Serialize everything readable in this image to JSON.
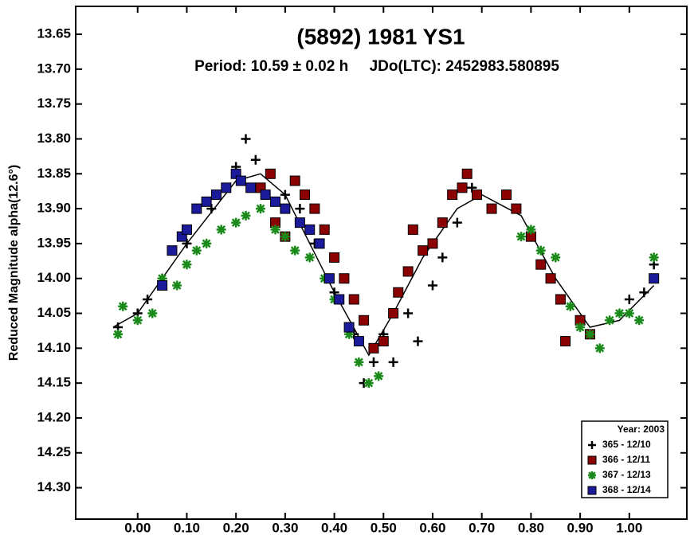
{
  "chart_data": {
    "type": "scatter",
    "title": "(5892) 1981 YS1",
    "subtitle": "Period: 10.59 ± 0.02 h     JDo(LTC): 2452983.580895",
    "y_label": "Reduced Magnitude alpha(12.6°)",
    "xlim": [
      -0.126,
      1.117
    ],
    "ylim": [
      13.61,
      14.345
    ],
    "y_inverted": true,
    "xticks": [
      {
        "value": 0,
        "label": "0.00"
      },
      {
        "value": 0.1,
        "label": "0.10"
      },
      {
        "value": 0.2,
        "label": "0.20"
      },
      {
        "value": 0.3,
        "label": "0.30"
      },
      {
        "value": 0.4,
        "label": "0.40"
      },
      {
        "value": 0.5,
        "label": "0.50"
      },
      {
        "value": 0.6,
        "label": "0.60"
      },
      {
        "value": 0.7,
        "label": "0.70"
      },
      {
        "value": 0.8,
        "label": "0.80"
      },
      {
        "value": 0.9,
        "label": "0.90"
      },
      {
        "value": 1,
        "label": "1.00"
      }
    ],
    "yticks": [
      {
        "value": 13.65,
        "label": "13.65"
      },
      {
        "value": 13.7,
        "label": "13.70"
      },
      {
        "value": 13.75,
        "label": "13.75"
      },
      {
        "value": 13.8,
        "label": "13.80"
      },
      {
        "value": 13.85,
        "label": "13.85"
      },
      {
        "value": 13.9,
        "label": "13.90"
      },
      {
        "value": 13.95,
        "label": "13.95"
      },
      {
        "value": 14,
        "label": "14.00"
      },
      {
        "value": 14.05,
        "label": "14.05"
      },
      {
        "value": 14.1,
        "label": "14.10"
      },
      {
        "value": 14.15,
        "label": "14.15"
      },
      {
        "value": 14.2,
        "label": "14.20"
      },
      {
        "value": 14.25,
        "label": "14.25"
      },
      {
        "value": 14.3,
        "label": "14.30"
      }
    ],
    "legend_title": "Year: 2003",
    "legend_position": "lower right",
    "series": [
      {
        "name": "365 - 12/10",
        "color": "#000000",
        "marker": "plus",
        "x": [
          -0.04,
          0.0,
          0.02,
          0.05,
          0.1,
          0.15,
          0.2,
          0.22,
          0.24,
          0.27,
          0.3,
          0.33,
          0.36,
          0.4,
          0.44,
          0.46,
          0.48,
          0.5,
          0.52,
          0.55,
          0.57,
          0.6,
          0.62,
          0.65,
          0.68,
          1.0,
          1.03,
          1.05
        ],
        "values": [
          14.07,
          14.05,
          14.03,
          14.0,
          13.95,
          13.9,
          13.84,
          13.8,
          13.83,
          13.85,
          13.88,
          13.9,
          13.95,
          14.02,
          14.08,
          14.15,
          14.12,
          14.08,
          14.12,
          14.05,
          14.09,
          14.01,
          13.97,
          13.92,
          13.87,
          14.03,
          14.02,
          13.98
        ]
      },
      {
        "name": "366 - 12/11",
        "color": "#8b0000",
        "marker": "square",
        "x": [
          0.25,
          0.27,
          0.28,
          0.3,
          0.32,
          0.34,
          0.36,
          0.38,
          0.4,
          0.42,
          0.44,
          0.46,
          0.48,
          0.5,
          0.52,
          0.53,
          0.55,
          0.56,
          0.58,
          0.6,
          0.62,
          0.64,
          0.66,
          0.67,
          0.69,
          0.72,
          0.75,
          0.77,
          0.8,
          0.82,
          0.84,
          0.86,
          0.87,
          0.9,
          0.92
        ],
        "values": [
          13.87,
          13.85,
          13.92,
          13.94,
          13.86,
          13.88,
          13.9,
          13.93,
          13.97,
          14.0,
          14.03,
          14.06,
          14.1,
          14.09,
          14.05,
          14.02,
          13.99,
          13.93,
          13.96,
          13.95,
          13.92,
          13.88,
          13.87,
          13.85,
          13.88,
          13.9,
          13.88,
          13.9,
          13.94,
          13.98,
          14.0,
          14.03,
          14.09,
          14.06,
          14.08
        ]
      },
      {
        "name": "367 - 12/13",
        "color": "#1a8a1a",
        "marker": "star",
        "x": [
          -0.04,
          -0.03,
          0.0,
          0.03,
          0.05,
          0.08,
          0.1,
          0.12,
          0.14,
          0.17,
          0.2,
          0.22,
          0.25,
          0.28,
          0.3,
          0.32,
          0.35,
          0.38,
          0.4,
          0.43,
          0.45,
          0.47,
          0.49,
          0.78,
          0.8,
          0.82,
          0.85,
          0.88,
          0.9,
          0.92,
          0.94,
          0.96,
          0.98,
          1.0,
          1.02,
          1.05
        ],
        "values": [
          14.08,
          14.04,
          14.06,
          14.05,
          14.0,
          14.01,
          13.98,
          13.96,
          13.95,
          13.93,
          13.92,
          13.91,
          13.9,
          13.93,
          13.94,
          13.96,
          13.97,
          14.0,
          14.03,
          14.08,
          14.12,
          14.15,
          14.14,
          13.94,
          13.93,
          13.96,
          13.97,
          14.04,
          14.07,
          14.08,
          14.1,
          14.06,
          14.05,
          14.05,
          14.06,
          13.97
        ]
      },
      {
        "name": "368 - 12/14",
        "color": "#1a1a9a",
        "marker": "square",
        "x": [
          0.05,
          0.07,
          0.09,
          0.1,
          0.12,
          0.14,
          0.16,
          0.18,
          0.2,
          0.21,
          0.23,
          0.26,
          0.28,
          0.3,
          0.33,
          0.35,
          0.37,
          0.39,
          0.41,
          0.43,
          0.45,
          1.05
        ],
        "values": [
          14.01,
          13.96,
          13.94,
          13.93,
          13.9,
          13.89,
          13.88,
          13.87,
          13.85,
          13.86,
          13.87,
          13.88,
          13.89,
          13.9,
          13.92,
          13.93,
          13.95,
          14.0,
          14.03,
          14.07,
          14.09,
          14.0
        ]
      }
    ],
    "fit": {
      "color": "#000000",
      "x": [
        -0.05,
        0.0,
        0.1,
        0.2,
        0.25,
        0.3,
        0.4,
        0.47,
        0.52,
        0.58,
        0.65,
        0.7,
        0.78,
        0.85,
        0.92,
        0.98,
        1.05
      ],
      "values": [
        14.07,
        14.05,
        13.95,
        13.86,
        13.85,
        13.88,
        14.02,
        14.11,
        14.05,
        13.97,
        13.9,
        13.88,
        13.91,
        14.0,
        14.07,
        14.06,
        14.01
      ]
    }
  }
}
